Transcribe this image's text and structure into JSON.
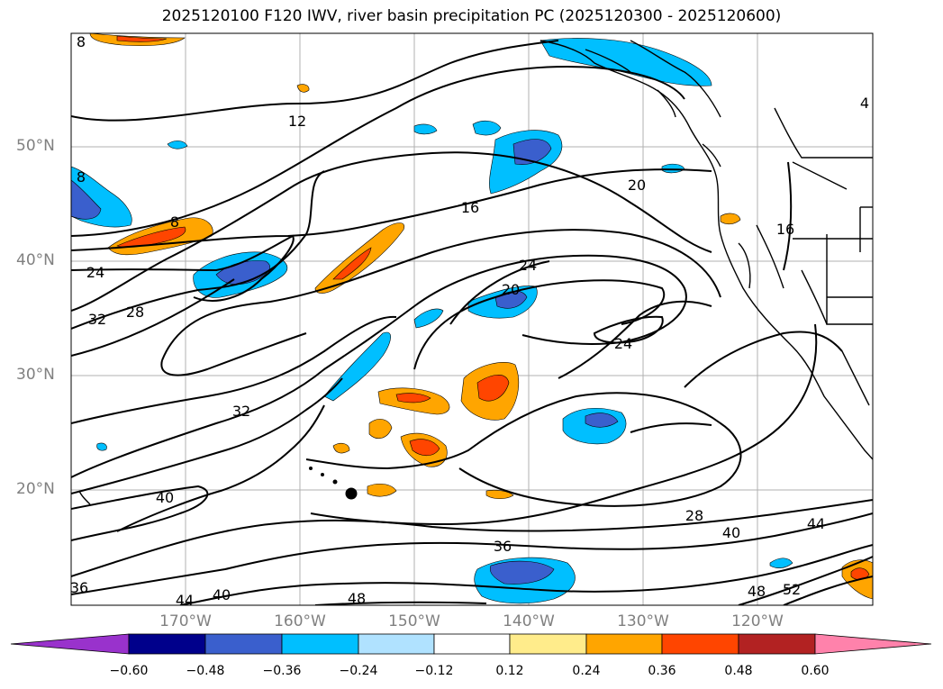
{
  "title": "2025120100 F120 IWV, river basin precipitation PC (2025120300 - 2025120600)",
  "map": {
    "lat_labels": [
      "50°N",
      "40°N",
      "30°N",
      "20°N"
    ],
    "lon_labels": [
      "170°W",
      "160°W",
      "150°W",
      "140°W",
      "130°W",
      "120°W"
    ],
    "contour_labels": [
      {
        "id": "c8a",
        "text": "8"
      },
      {
        "id": "c12",
        "text": "12"
      },
      {
        "id": "c8b",
        "text": "8"
      },
      {
        "id": "c8c",
        "text": "8"
      },
      {
        "id": "c16a",
        "text": "16"
      },
      {
        "id": "c20a",
        "text": "20"
      },
      {
        "id": "c24a",
        "text": "24"
      },
      {
        "id": "c24b",
        "text": "24"
      },
      {
        "id": "c20b",
        "text": "20"
      },
      {
        "id": "c24c",
        "text": "24"
      },
      {
        "id": "c32a",
        "text": "32"
      },
      {
        "id": "c28a",
        "text": "28"
      },
      {
        "id": "c32b",
        "text": "32"
      },
      {
        "id": "c40a",
        "text": "40"
      },
      {
        "id": "c36a",
        "text": "36"
      },
      {
        "id": "c28b",
        "text": "28"
      },
      {
        "id": "c40b",
        "text": "40"
      },
      {
        "id": "c44a",
        "text": "44"
      },
      {
        "id": "c36b",
        "text": "36"
      },
      {
        "id": "c44b",
        "text": "44"
      },
      {
        "id": "c40c",
        "text": "40"
      },
      {
        "id": "c48a",
        "text": "48"
      },
      {
        "id": "c48b",
        "text": "48"
      },
      {
        "id": "c52",
        "text": "52"
      },
      {
        "id": "c4",
        "text": "4"
      },
      {
        "id": "c16b",
        "text": "16"
      }
    ]
  },
  "colorbar": {
    "ticks": [
      "−0.60",
      "−0.48",
      "−0.36",
      "−0.24",
      "−0.12",
      "0.12",
      "0.24",
      "0.36",
      "0.48",
      "0.60"
    ],
    "colors": [
      "#9932cc",
      "#00008b",
      "#3a5fcd",
      "#00bfff",
      "#b0e2ff",
      "#ffffff",
      "#ffec8b",
      "#ffa500",
      "#ff4500",
      "#b22222",
      "#ff82ab"
    ]
  }
}
